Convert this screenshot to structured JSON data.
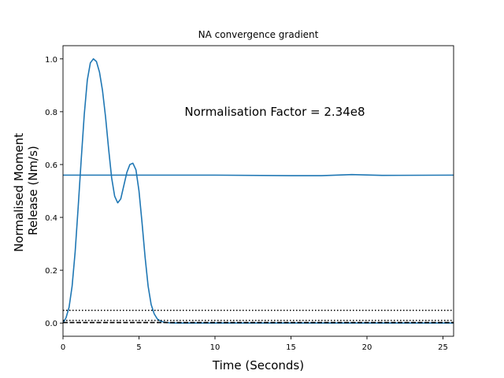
{
  "chart_data": {
    "type": "line",
    "title": "NA convergence gradient",
    "xlabel": "Time (Seconds)",
    "ylabel_lines": [
      "Normalised Moment",
      "Release (Nm/s)"
    ],
    "xlim": [
      0,
      25.7
    ],
    "ylim": [
      -0.05,
      1.05
    ],
    "x_ticks": [
      0,
      5,
      10,
      15,
      20,
      25
    ],
    "y_ticks": [
      0.0,
      0.2,
      0.4,
      0.6,
      0.8,
      1.0
    ],
    "annotation": {
      "text": "Normalisation Factor = 2.34e8",
      "x": 8.0,
      "y": 0.8
    },
    "grid": false,
    "legend": "none",
    "series": [
      {
        "color": "#1f77b4",
        "style": "solid",
        "x": [
          0,
          0.2,
          0.4,
          0.6,
          0.8,
          1.0,
          1.2,
          1.4,
          1.6,
          1.8,
          2.0,
          2.2,
          2.4,
          2.6,
          2.8,
          3.0,
          3.2,
          3.4,
          3.6,
          3.8,
          4.0,
          4.2,
          4.4,
          4.6,
          4.8,
          5.0,
          5.2,
          5.4,
          5.6,
          5.8,
          6.0,
          6.2,
          6.4,
          6.6,
          6.8,
          7.0,
          7.5,
          8,
          10,
          15,
          20,
          25.7
        ],
        "y": [
          0.0,
          0.02,
          0.06,
          0.14,
          0.27,
          0.44,
          0.62,
          0.79,
          0.92,
          0.985,
          1.0,
          0.99,
          0.95,
          0.88,
          0.78,
          0.66,
          0.55,
          0.48,
          0.455,
          0.47,
          0.52,
          0.57,
          0.6,
          0.605,
          0.58,
          0.5,
          0.38,
          0.25,
          0.14,
          0.07,
          0.035,
          0.016,
          0.008,
          0.004,
          0.002,
          0.001,
          0.0,
          0.0,
          0.0,
          0.0,
          0.0,
          0.0
        ]
      },
      {
        "color": "#1f77b4",
        "style": "solid",
        "x": [
          0,
          5,
          10,
          15,
          17,
          19,
          21,
          25.7
        ],
        "y": [
          0.56,
          0.56,
          0.56,
          0.558,
          0.558,
          0.562,
          0.559,
          0.56
        ]
      },
      {
        "color": "#000000",
        "style": "dotted",
        "x": [
          0,
          25.7
        ],
        "y": [
          0.048,
          0.048
        ]
      },
      {
        "color": "#000000",
        "style": "dotted",
        "x": [
          0,
          25.7
        ],
        "y": [
          0.01,
          0.01
        ]
      },
      {
        "color": "#000000",
        "style": "dashed",
        "x": [
          0,
          25.7
        ],
        "y": [
          0.002,
          0.002
        ]
      }
    ]
  }
}
